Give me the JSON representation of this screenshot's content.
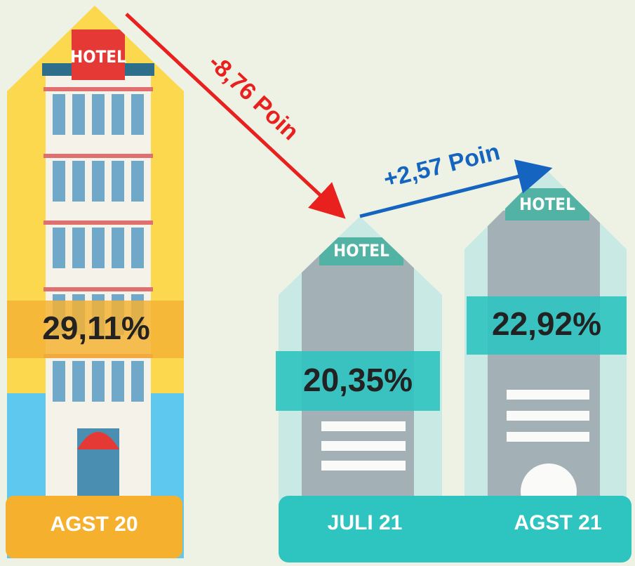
{
  "hotel_sign": "HOTEL",
  "periods": [
    {
      "label": "AGST 20",
      "value": "29,11%"
    },
    {
      "label": "JULI 21",
      "value": "20,35%"
    },
    {
      "label": "AGST 21",
      "value": "22,92%"
    }
  ],
  "changes": [
    "-8,76 Poin",
    "+2,57 Poin"
  ]
}
